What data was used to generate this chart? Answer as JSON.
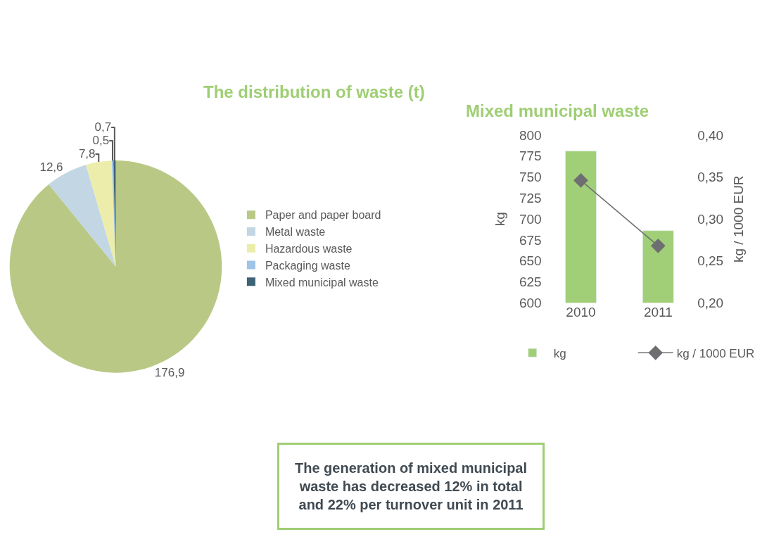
{
  "chart_data": [
    {
      "type": "pie",
      "title": "The distribution of waste (t)",
      "categories": [
        "Paper and paper board",
        "Metal waste",
        "Hazardous waste",
        "Packaging waste",
        "Mixed municipal waste"
      ],
      "values": [
        176.9,
        12.6,
        7.8,
        0.5,
        0.7
      ],
      "value_labels": [
        "176,9",
        "12,6",
        "7,8",
        "0,5",
        "0,7"
      ],
      "colors": [
        "#b9c985",
        "#c2d6e4",
        "#ecedaa",
        "#9ec4e8",
        "#3e6276"
      ],
      "legend": "right"
    },
    {
      "type": "bar",
      "title": "Mixed municipal waste",
      "categories": [
        "2010",
        "2011"
      ],
      "ylabel": "kg",
      "y2label": "kg / 1000 EUR",
      "series": [
        {
          "name": "kg",
          "color": "#a0cf77",
          "values": [
            781,
            686
          ]
        },
        {
          "name": "kg / 1000 EUR",
          "type": "line",
          "axis": "y2",
          "color": "#6d6e71",
          "marker": "diamond",
          "values": [
            0.346,
            0.268
          ]
        }
      ],
      "ylim": [
        600,
        800
      ],
      "yticks": [
        600,
        625,
        650,
        675,
        700,
        725,
        750,
        775,
        800
      ],
      "y2lim": [
        0.2,
        0.4
      ],
      "y2ticks": [
        {
          "value": 0.2,
          "label": "0,20"
        },
        {
          "value": 0.25,
          "label": "0,25"
        },
        {
          "value": 0.3,
          "label": "0,30"
        },
        {
          "value": 0.35,
          "label": "0,35"
        },
        {
          "value": 0.4,
          "label": "0,40"
        }
      ],
      "legend": "bottom"
    },
    {
      "type": "other",
      "annotations": [
        "The generation of mixed municipal\nwaste has decreased 12% in total\nand 22% per turnover unit in 2011"
      ]
    }
  ]
}
